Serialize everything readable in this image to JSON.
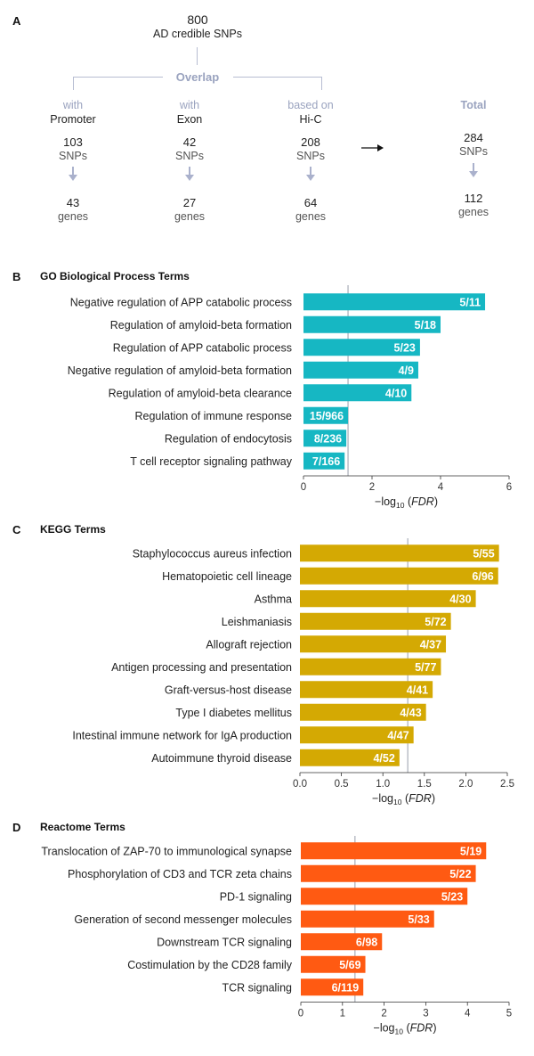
{
  "panel_a": {
    "label": "A",
    "top": {
      "count": "800",
      "desc": "AD credible SNPs"
    },
    "overlap_label": "Overlap",
    "columns": [
      {
        "qualifier": "with",
        "name": "Promoter",
        "snps": "103",
        "snps_label": "SNPs",
        "genes": "43",
        "genes_label": "genes"
      },
      {
        "qualifier": "with",
        "name": "Exon",
        "snps": "42",
        "snps_label": "SNPs",
        "genes": "27",
        "genes_label": "genes"
      },
      {
        "qualifier": "based on",
        "name": "Hi-C",
        "snps": "208",
        "snps_label": "SNPs",
        "genes": "64",
        "genes_label": "genes"
      }
    ],
    "total": {
      "label": "Total",
      "snps": "284",
      "snps_label": "SNPs",
      "genes": "112",
      "genes_label": "genes"
    }
  },
  "chart_data": [
    {
      "panel": "B",
      "type": "bar",
      "orientation": "horizontal",
      "title": "GO Biological Process Terms",
      "categories": [
        "Negative regulation of APP catabolic process",
        "Regulation of amyloid-beta formation",
        "Regulation of APP catabolic process",
        "Negative regulation of amyloid-beta formation",
        "Regulation of amyloid-beta clearance",
        "Regulation of immune response",
        "Regulation of endocytosis",
        "T cell receptor signaling pathway"
      ],
      "values": [
        5.3,
        4.0,
        3.4,
        3.35,
        3.15,
        1.3,
        1.25,
        1.2
      ],
      "bar_labels": [
        "5/11",
        "5/18",
        "5/23",
        "4/9",
        "4/10",
        "15/966",
        "8/236",
        "7/166"
      ],
      "xlim": [
        0,
        6
      ],
      "xticks": [
        0,
        2,
        4,
        6
      ],
      "xtick_labels": [
        "0",
        "2",
        "4",
        "6"
      ],
      "threshold": 1.3,
      "xlabel_prefix": "−log",
      "xlabel_sub": "10",
      "xlabel_var": "FDR",
      "color": "#16b7c3"
    },
    {
      "panel": "C",
      "type": "bar",
      "orientation": "horizontal",
      "title": "KEGG Terms",
      "categories": [
        "Staphylococcus aureus infection",
        "Hematopoietic cell lineage",
        "Asthma",
        "Leishmaniasis",
        "Allograft rejection",
        "Antigen processing and presentation",
        "Graft-versus-host disease",
        "Type I diabetes mellitus",
        "Intestinal immune network for IgA production",
        "Autoimmune thyroid disease"
      ],
      "values": [
        2.4,
        2.39,
        2.12,
        1.82,
        1.76,
        1.7,
        1.6,
        1.52,
        1.37,
        1.2
      ],
      "bar_labels": [
        "5/55",
        "6/96",
        "4/30",
        "5/72",
        "4/37",
        "5/77",
        "4/41",
        "4/43",
        "4/47",
        "4/52"
      ],
      "xlim": [
        0,
        2.5
      ],
      "xticks": [
        0,
        0.5,
        1,
        1.5,
        2,
        2.5
      ],
      "xtick_labels": [
        "0.0",
        "0.5",
        "1.0",
        "1.5",
        "2.0",
        "2.5"
      ],
      "threshold": 1.3,
      "xlabel_prefix": "−log",
      "xlabel_sub": "10",
      "xlabel_var": "FDR",
      "color": "#d4a903"
    },
    {
      "panel": "D",
      "type": "bar",
      "orientation": "horizontal",
      "title": "Reactome Terms",
      "categories": [
        "Translocation of ZAP-70 to immunological synapse",
        "Phosphorylation of CD3 and TCR zeta chains",
        "PD-1 signaling",
        "Generation of second messenger molecules",
        "Downstream TCR signaling",
        "Costimulation by the CD28 family",
        "TCR signaling"
      ],
      "values": [
        4.45,
        4.2,
        4.0,
        3.2,
        1.95,
        1.55,
        1.5
      ],
      "bar_labels": [
        "5/19",
        "5/22",
        "5/23",
        "5/33",
        "6/98",
        "5/69",
        "6/119"
      ],
      "xlim": [
        0,
        5
      ],
      "xticks": [
        0,
        1,
        2,
        3,
        4,
        5
      ],
      "xtick_labels": [
        "0",
        "1",
        "2",
        "3",
        "4",
        "5"
      ],
      "threshold": 1.3,
      "xlabel_prefix": "−log",
      "xlabel_sub": "10",
      "xlabel_var": "FDR",
      "color": "#ff5a12"
    }
  ]
}
